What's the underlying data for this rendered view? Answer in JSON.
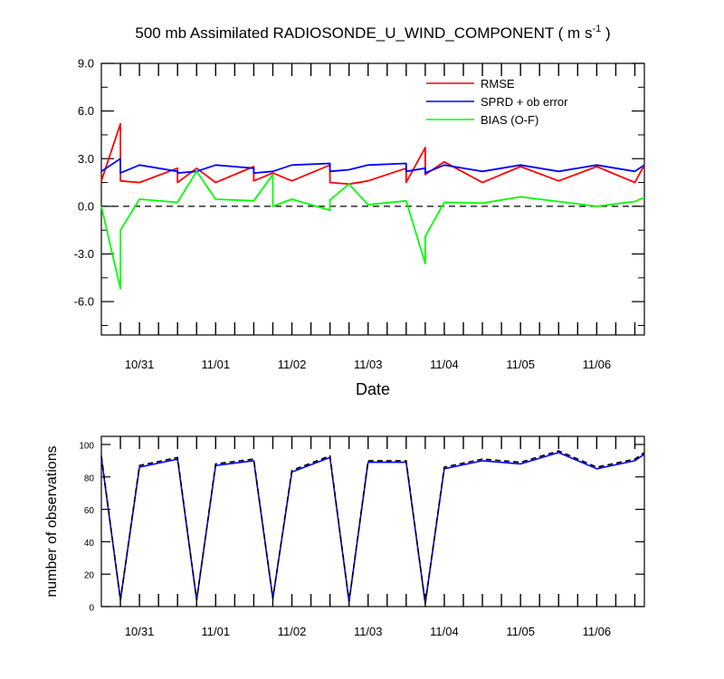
{
  "chart_data": [
    {
      "type": "line",
      "title_main": "500 mb Assimilated RADIOSONDE_U_WIND_COMPONENT ( m s",
      "title_sup": "-1",
      "title_close": " )",
      "xlabel": "Date",
      "ylabel": "",
      "ylim": [
        -8.1,
        9.0
      ],
      "y_ticks": [
        9.0,
        6.0,
        3.0,
        0.0,
        -3.0,
        -6.0
      ],
      "y_tick_labels": [
        "9.0",
        "6.0",
        "3.0",
        "0.0",
        "-3.0",
        "-6.0"
      ],
      "xlim": [
        0,
        7.125
      ],
      "x_ticks": [
        0.5,
        1.5,
        2.5,
        3.5,
        4.5,
        5.5,
        6.5
      ],
      "x_tick_labels": [
        "10/31",
        "11/01",
        "11/02",
        "11/03",
        "11/04",
        "11/05",
        "11/06"
      ],
      "zero_line": true,
      "legend_position": "top-right",
      "series": [
        {
          "name": "RMSE",
          "color": "#ff0000",
          "x": [
            0,
            0.25,
            0.25,
            0.5,
            1.0,
            1.0,
            1.25,
            1.5,
            2.0,
            2.0,
            2.25,
            2.5,
            3.0,
            3.0,
            3.25,
            3.5,
            4.0,
            4.0,
            4.25,
            4.25,
            4.5,
            5.0,
            5.5,
            6.0,
            6.5,
            7.0,
            7.125
          ],
          "values": [
            1.6,
            5.2,
            1.6,
            1.5,
            2.4,
            1.5,
            2.4,
            1.5,
            2.5,
            1.6,
            2.1,
            1.6,
            2.6,
            1.5,
            1.4,
            1.6,
            2.4,
            1.5,
            3.7,
            2.0,
            2.8,
            1.5,
            2.5,
            1.6,
            2.5,
            1.5,
            2.6
          ]
        },
        {
          "name": "SPRD + ob error",
          "color": "#0000ff",
          "x": [
            0,
            0.25,
            0.25,
            0.5,
            1.0,
            1.0,
            1.25,
            1.5,
            2.0,
            2.0,
            2.25,
            2.5,
            3.0,
            3.0,
            3.25,
            3.5,
            4.0,
            4.0,
            4.25,
            4.25,
            4.5,
            5.0,
            5.5,
            6.0,
            6.5,
            7.0,
            7.125
          ],
          "values": [
            2.2,
            3.0,
            2.1,
            2.6,
            2.2,
            2.1,
            2.2,
            2.6,
            2.4,
            2.1,
            2.2,
            2.6,
            2.7,
            2.2,
            2.3,
            2.6,
            2.7,
            2.2,
            2.4,
            2.1,
            2.6,
            2.2,
            2.6,
            2.2,
            2.6,
            2.2,
            2.6
          ]
        },
        {
          "name": "BIAS (O-F)",
          "color": "#00ff00",
          "x": [
            0,
            0.25,
            0.25,
            0.5,
            1.0,
            1.25,
            1.5,
            2.0,
            2.25,
            2.25,
            2.5,
            3.0,
            3.0,
            3.25,
            3.5,
            4.0,
            4.25,
            4.25,
            4.5,
            5.0,
            5.5,
            6.0,
            6.5,
            7.0,
            7.125
          ],
          "values": [
            0.0,
            -5.2,
            -1.5,
            0.45,
            0.25,
            2.2,
            0.45,
            0.35,
            2.0,
            0.0,
            0.45,
            -0.25,
            0.4,
            1.4,
            0.1,
            0.35,
            -3.6,
            -1.9,
            0.25,
            0.2,
            0.6,
            0.3,
            0.0,
            0.3,
            0.55
          ]
        }
      ]
    },
    {
      "type": "line",
      "ylabel": "number of observations",
      "ylim": [
        0,
        105
      ],
      "y_ticks": [
        0,
        20,
        40,
        60,
        80,
        100
      ],
      "y_tick_labels": [
        "0",
        "20",
        "40",
        "60",
        "80",
        "100"
      ],
      "xlim": [
        0,
        7.125
      ],
      "x_ticks": [
        0.5,
        1.5,
        2.5,
        3.5,
        4.5,
        5.5,
        6.5
      ],
      "x_tick_labels": [
        "10/31",
        "11/01",
        "11/02",
        "11/03",
        "11/04",
        "11/05",
        "11/06"
      ],
      "series": [
        {
          "style": "solid",
          "color": "#0000ff",
          "x": [
            0,
            0.25,
            0.5,
            1.0,
            1.25,
            1.5,
            2.0,
            2.25,
            2.5,
            3.0,
            3.25,
            3.5,
            4.0,
            4.25,
            4.5,
            5.0,
            5.5,
            6.0,
            6.5,
            7.0,
            7.125
          ],
          "values": [
            92,
            4,
            86,
            91,
            4,
            87,
            90,
            5,
            83,
            92,
            3,
            89,
            89,
            2,
            85,
            90,
            88,
            95,
            85,
            90,
            94
          ]
        },
        {
          "style": "dashed",
          "color": "#000000",
          "x": [
            0,
            0.25,
            0.5,
            1.0,
            1.25,
            1.5,
            2.0,
            2.25,
            2.5,
            3.0,
            3.25,
            3.5,
            4.0,
            4.25,
            4.5,
            5.0,
            5.5,
            6.0,
            6.5,
            7.0,
            7.125
          ],
          "values": [
            93,
            4,
            87,
            92,
            4,
            88,
            91,
            5,
            84,
            93,
            3,
            90,
            90,
            2,
            86,
            91,
            89,
            96,
            86,
            91,
            95
          ]
        }
      ]
    }
  ]
}
